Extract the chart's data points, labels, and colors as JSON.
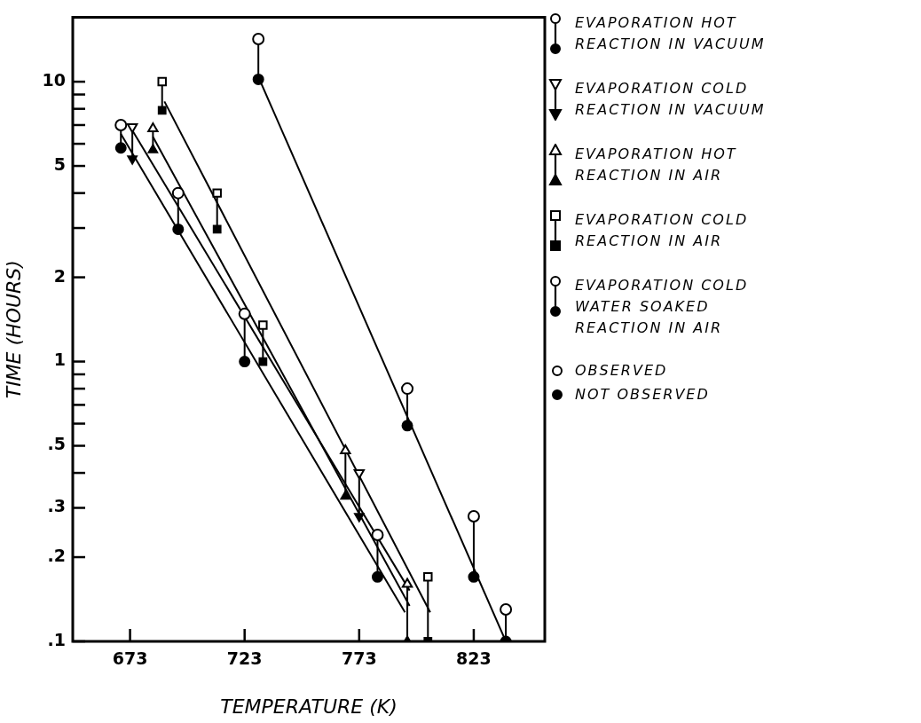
{
  "chart_data": {
    "type": "scatter",
    "xlabel": "TEMPERATURE (K)",
    "ylabel": "TIME (HOURS)",
    "xlim": [
      648,
      854
    ],
    "xticks": [
      673,
      723,
      773,
      823
    ],
    "ylim": [
      0.1,
      17
    ],
    "log": "y",
    "yticks": [
      {
        "value": 0.1,
        "label": ".1"
      },
      {
        "value": 0.2,
        "label": ".2"
      },
      {
        "value": 0.3,
        "label": ".3"
      },
      {
        "value": 0.4,
        "label": null
      },
      {
        "value": 0.5,
        "label": ".5"
      },
      {
        "value": 0.6,
        "label": null
      },
      {
        "value": 0.7,
        "label": null
      },
      {
        "value": 0.8,
        "label": null
      },
      {
        "value": 0.9,
        "label": null
      },
      1,
      2,
      {
        "value": 3,
        "label": null
      },
      {
        "value": 4,
        "label": null
      },
      5,
      {
        "value": 6,
        "label": null
      },
      {
        "value": 7,
        "label": null
      },
      {
        "value": 8,
        "label": null
      },
      {
        "value": 9,
        "label": null
      },
      10
    ],
    "legend": "right",
    "annotations": [
      "OBSERVED",
      "NOT OBSERVED"
    ],
    "series": [
      {
        "type": "line",
        "color": "#000000",
        "x": [
          669,
          793
        ],
        "values": [
          6.5,
          0.127
        ]
      },
      {
        "type": "line",
        "color": "#000000",
        "x": [
          674,
          795
        ],
        "values": [
          6.7,
          0.152
        ]
      },
      {
        "type": "line",
        "color": "#000000",
        "x": [
          683,
          795
        ],
        "values": [
          6.35,
          0.134
        ]
      },
      {
        "type": "line",
        "color": "#000000",
        "x": [
          688,
          804
        ],
        "values": [
          8.5,
          0.127
        ]
      },
      {
        "type": "line",
        "color": "#000000",
        "x": [
          729,
          837
        ],
        "values": [
          10.4,
          0.1
        ]
      },
      {
        "type": "line",
        "color": "#000000",
        "x": [
          669,
          669,
          null,
          694,
          694,
          null,
          723,
          723,
          null,
          781,
          781
        ],
        "values": [
          5.8,
          7.0,
          null,
          2.97,
          4.0,
          null,
          1.0,
          1.48,
          null,
          0.17,
          0.24
        ]
      },
      {
        "type": "line",
        "color": "#000000",
        "x": [
          674,
          674,
          null,
          773,
          773
        ],
        "values": [
          5.3,
          6.9,
          null,
          0.28,
          0.4
        ]
      },
      {
        "type": "line",
        "color": "#000000",
        "x": [
          683,
          683,
          null,
          767,
          767,
          null,
          794,
          794
        ],
        "values": [
          5.7,
          6.8,
          null,
          0.33,
          0.48,
          null,
          0.1,
          0.16
        ]
      },
      {
        "type": "line",
        "color": "#000000",
        "x": [
          687,
          687,
          null,
          711,
          711,
          null,
          731,
          731,
          null,
          803,
          803
        ],
        "values": [
          7.9,
          10,
          null,
          2.97,
          4.0,
          null,
          1.0,
          1.35,
          null,
          0.1,
          0.17
        ]
      },
      {
        "type": "line",
        "color": "#000000",
        "x": [
          729,
          729,
          null,
          794,
          794,
          null,
          823,
          823,
          null,
          837,
          837
        ],
        "values": [
          10.2,
          14.2,
          null,
          0.59,
          0.8,
          null,
          0.17,
          0.28,
          null,
          0.1,
          0.13
        ]
      },
      {
        "marker": "circle",
        "color": "#000000",
        "x": [
          669,
          694,
          723,
          781
        ],
        "values": [
          5.8,
          2.97,
          1.0,
          0.17
        ]
      },
      {
        "marker": "triangle_down",
        "color": "#000000",
        "x": [
          674,
          773
        ],
        "values": [
          5.3,
          0.28
        ]
      },
      {
        "marker": "triangle",
        "color": "#000000",
        "x": [
          683,
          767,
          794
        ],
        "values": [
          5.7,
          0.33,
          0.1
        ]
      },
      {
        "marker": "square",
        "color": "#000000",
        "x": [
          687,
          711,
          731,
          803
        ],
        "values": [
          7.9,
          2.97,
          1.0,
          0.1
        ]
      },
      {
        "marker": "circle",
        "color": "#000000",
        "x": [
          729,
          794,
          823,
          837
        ],
        "values": [
          10.2,
          0.59,
          0.17,
          0.1
        ]
      },
      {
        "name": "EVAPORATION HOT REACTION IN VACUUM",
        "marker": "circle",
        "color": "#000000",
        "x": [
          669,
          694,
          723,
          781
        ],
        "values": [
          7.0,
          4.0,
          1.48,
          0.24
        ]
      },
      {
        "name": "EVAPORATION COLD REACTION IN VACUUM",
        "marker": "triangle_down",
        "color": "#000000",
        "x": [
          674,
          773
        ],
        "values": [
          6.9,
          0.4
        ]
      },
      {
        "name": "EVAPORATION HOT REACTION IN AIR",
        "marker": "triangle",
        "color": "#000000",
        "x": [
          683,
          767,
          794
        ],
        "values": [
          6.8,
          0.48,
          0.16
        ]
      },
      {
        "name": "EVAPORATION COLD REACTION IN AIR",
        "marker": "square",
        "color": "#000000",
        "x": [
          687,
          711,
          731,
          803
        ],
        "values": [
          10,
          4.0,
          1.35,
          0.17
        ]
      },
      {
        "name": "EVAPORATION COLD WATER SOAKED REACTION IN AIR",
        "marker": "circle",
        "color": "#000000",
        "x": [
          729,
          794,
          823,
          837
        ],
        "values": [
          14.2,
          0.8,
          0.28,
          0.13
        ]
      }
    ]
  }
}
